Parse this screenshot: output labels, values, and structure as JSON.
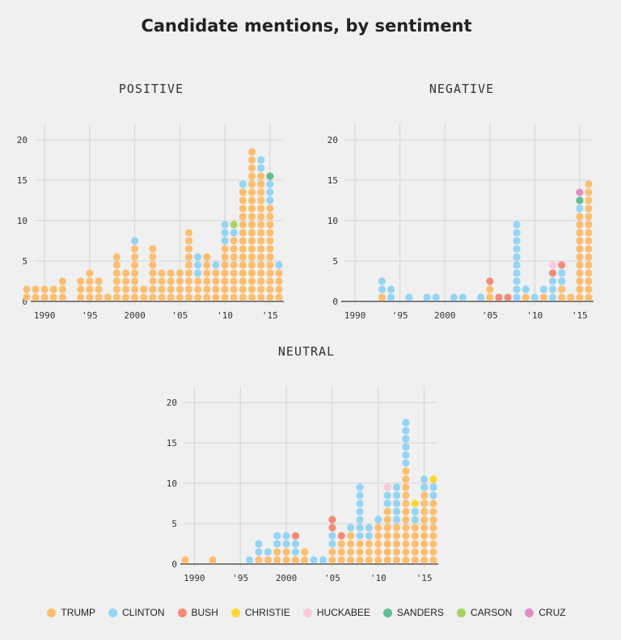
{
  "title": "Candidate mentions, by sentiment",
  "colors": {
    "TRUMP": "#fdbe6f",
    "CLINTON": "#94d4f5",
    "BUSH": "#f58a78",
    "CHRISTIE": "#fbd734",
    "HUCKABEE": "#f8c9dd",
    "SANDERS": "#64bc93",
    "CARSON": "#a4d65e",
    "CRUZ": "#e28ec2"
  },
  "legend": [
    "TRUMP",
    "CLINTON",
    "BUSH",
    "CHRISTIE",
    "HUCKABEE",
    "SANDERS",
    "CARSON",
    "CRUZ"
  ],
  "chart_data": [
    {
      "type": "scatter",
      "title": "POSITIVE",
      "x_ticks": [
        "1990",
        "'95",
        "2000",
        "'05",
        "'10",
        "'15"
      ],
      "y_ticks": [
        "0",
        "5",
        "10",
        "15",
        "20"
      ],
      "ylim": [
        0,
        20
      ],
      "xlim": [
        1989,
        2016
      ],
      "stacks": [
        {
          "year": 1988,
          "TRUMP": 2
        },
        {
          "year": 1989,
          "TRUMP": 2
        },
        {
          "year": 1990,
          "TRUMP": 2
        },
        {
          "year": 1991,
          "TRUMP": 2
        },
        {
          "year": 1992,
          "TRUMP": 3
        },
        {
          "year": 1994,
          "TRUMP": 3
        },
        {
          "year": 1995,
          "TRUMP": 4
        },
        {
          "year": 1996,
          "TRUMP": 3
        },
        {
          "year": 1997,
          "TRUMP": 1
        },
        {
          "year": 1998,
          "TRUMP": 6
        },
        {
          "year": 1999,
          "TRUMP": 4
        },
        {
          "year": 2000,
          "TRUMP": 7,
          "CLINTON": 1
        },
        {
          "year": 2001,
          "TRUMP": 2
        },
        {
          "year": 2002,
          "TRUMP": 7
        },
        {
          "year": 2003,
          "TRUMP": 4
        },
        {
          "year": 2004,
          "TRUMP": 4
        },
        {
          "year": 2005,
          "TRUMP": 4
        },
        {
          "year": 2006,
          "TRUMP": 9
        },
        {
          "year": 2007,
          "TRUMP": 3,
          "CLINTON": 3
        },
        {
          "year": 2008,
          "TRUMP": 6
        },
        {
          "year": 2009,
          "TRUMP": 4,
          "CLINTON": 1
        },
        {
          "year": 2010,
          "TRUMP": 7,
          "CLINTON": 3
        },
        {
          "year": 2011,
          "TRUMP": 8,
          "CLINTON": 1,
          "CARSON": 1
        },
        {
          "year": 2012,
          "TRUMP": 14,
          "CLINTON": 1
        },
        {
          "year": 2013,
          "TRUMP": 19
        },
        {
          "year": 2014,
          "TRUMP": 16,
          "CLINTON": 2
        },
        {
          "year": 2015,
          "TRUMP": 12,
          "CLINTON": 3,
          "SANDERS": 1
        },
        {
          "year": 2016,
          "TRUMP": 4,
          "CLINTON": 1
        }
      ]
    },
    {
      "type": "scatter",
      "title": "NEGATIVE",
      "x_ticks": [
        "1990",
        "'95",
        "2000",
        "'05",
        "'10",
        "'15"
      ],
      "y_ticks": [
        "0",
        "5",
        "10",
        "15",
        "20"
      ],
      "ylim": [
        0,
        20
      ],
      "xlim": [
        1989,
        2016
      ],
      "stacks": [
        {
          "year": 1993,
          "TRUMP": 1,
          "CLINTON": 2
        },
        {
          "year": 1994,
          "CLINTON": 2
        },
        {
          "year": 1996,
          "CLINTON": 1
        },
        {
          "year": 1998,
          "CLINTON": 1
        },
        {
          "year": 1999,
          "CLINTON": 1
        },
        {
          "year": 2001,
          "CLINTON": 1
        },
        {
          "year": 2002,
          "CLINTON": 1
        },
        {
          "year": 2004,
          "CLINTON": 1
        },
        {
          "year": 2005,
          "TRUMP": 2,
          "BUSH": 1
        },
        {
          "year": 2006,
          "BUSH": 1
        },
        {
          "year": 2007,
          "BUSH": 1
        },
        {
          "year": 2008,
          "CLINTON": 10
        },
        {
          "year": 2009,
          "TRUMP": 1,
          "CLINTON": 1
        },
        {
          "year": 2010,
          "CLINTON": 1
        },
        {
          "year": 2011,
          "TRUMP": 1,
          "CLINTON": 1
        },
        {
          "year": 2012,
          "CLINTON": 3,
          "BUSH": 1,
          "HUCKABEE": 1
        },
        {
          "year": 2013,
          "TRUMP": 2,
          "CLINTON": 2,
          "BUSH": 1
        },
        {
          "year": 2014,
          "TRUMP": 1
        },
        {
          "year": 2015,
          "TRUMP": 11,
          "CLINTON": 1,
          "SANDERS": 1,
          "CRUZ": 1
        },
        {
          "year": 2016,
          "TRUMP": 15
        }
      ]
    },
    {
      "type": "scatter",
      "title": "NEUTRAL",
      "x_ticks": [
        "1990",
        "'95",
        "2000",
        "'05",
        "'10",
        "'15"
      ],
      "y_ticks": [
        "0",
        "5",
        "10",
        "15",
        "20"
      ],
      "ylim": [
        0,
        20
      ],
      "xlim": [
        1989,
        2016
      ],
      "stacks": [
        {
          "year": 1989,
          "TRUMP": 1
        },
        {
          "year": 1992,
          "TRUMP": 1
        },
        {
          "year": 1996,
          "CLINTON": 1
        },
        {
          "year": 1997,
          "TRUMP": 1,
          "CLINTON": 2
        },
        {
          "year": 1998,
          "TRUMP": 1,
          "CLINTON": 1
        },
        {
          "year": 1999,
          "TRUMP": 2,
          "CLINTON": 2
        },
        {
          "year": 2000,
          "TRUMP": 2,
          "CLINTON": 2
        },
        {
          "year": 2001,
          "TRUMP": 1,
          "CLINTON": 2,
          "BUSH": 1
        },
        {
          "year": 2002,
          "TRUMP": 2
        },
        {
          "year": 2003,
          "CLINTON": 1
        },
        {
          "year": 2004,
          "CLINTON": 1
        },
        {
          "year": 2005,
          "TRUMP": 2,
          "CLINTON": 2,
          "BUSH": 2
        },
        {
          "year": 2006,
          "TRUMP": 3,
          "BUSH": 1
        },
        {
          "year": 2007,
          "TRUMP": 4,
          "CLINTON": 1
        },
        {
          "year": 2008,
          "TRUMP": 3,
          "CLINTON": 7
        },
        {
          "year": 2009,
          "TRUMP": 3,
          "CLINTON": 2
        },
        {
          "year": 2010,
          "TRUMP": 5,
          "CLINTON": 1
        },
        {
          "year": 2011,
          "TRUMP": 7,
          "CLINTON": 2,
          "HUCKABEE": 1
        },
        {
          "year": 2012,
          "TRUMP": 5,
          "CLINTON": 5
        },
        {
          "year": 2013,
          "TRUMP": 12,
          "CLINTON": 6
        },
        {
          "year": 2014,
          "TRUMP": 5,
          "CLINTON": 2,
          "CHRISTIE": 1
        },
        {
          "year": 2015,
          "TRUMP": 9,
          "CLINTON": 2
        },
        {
          "year": 2016,
          "TRUMP": 8,
          "CLINTON": 2,
          "CHRISTIE": 1
        }
      ]
    }
  ]
}
